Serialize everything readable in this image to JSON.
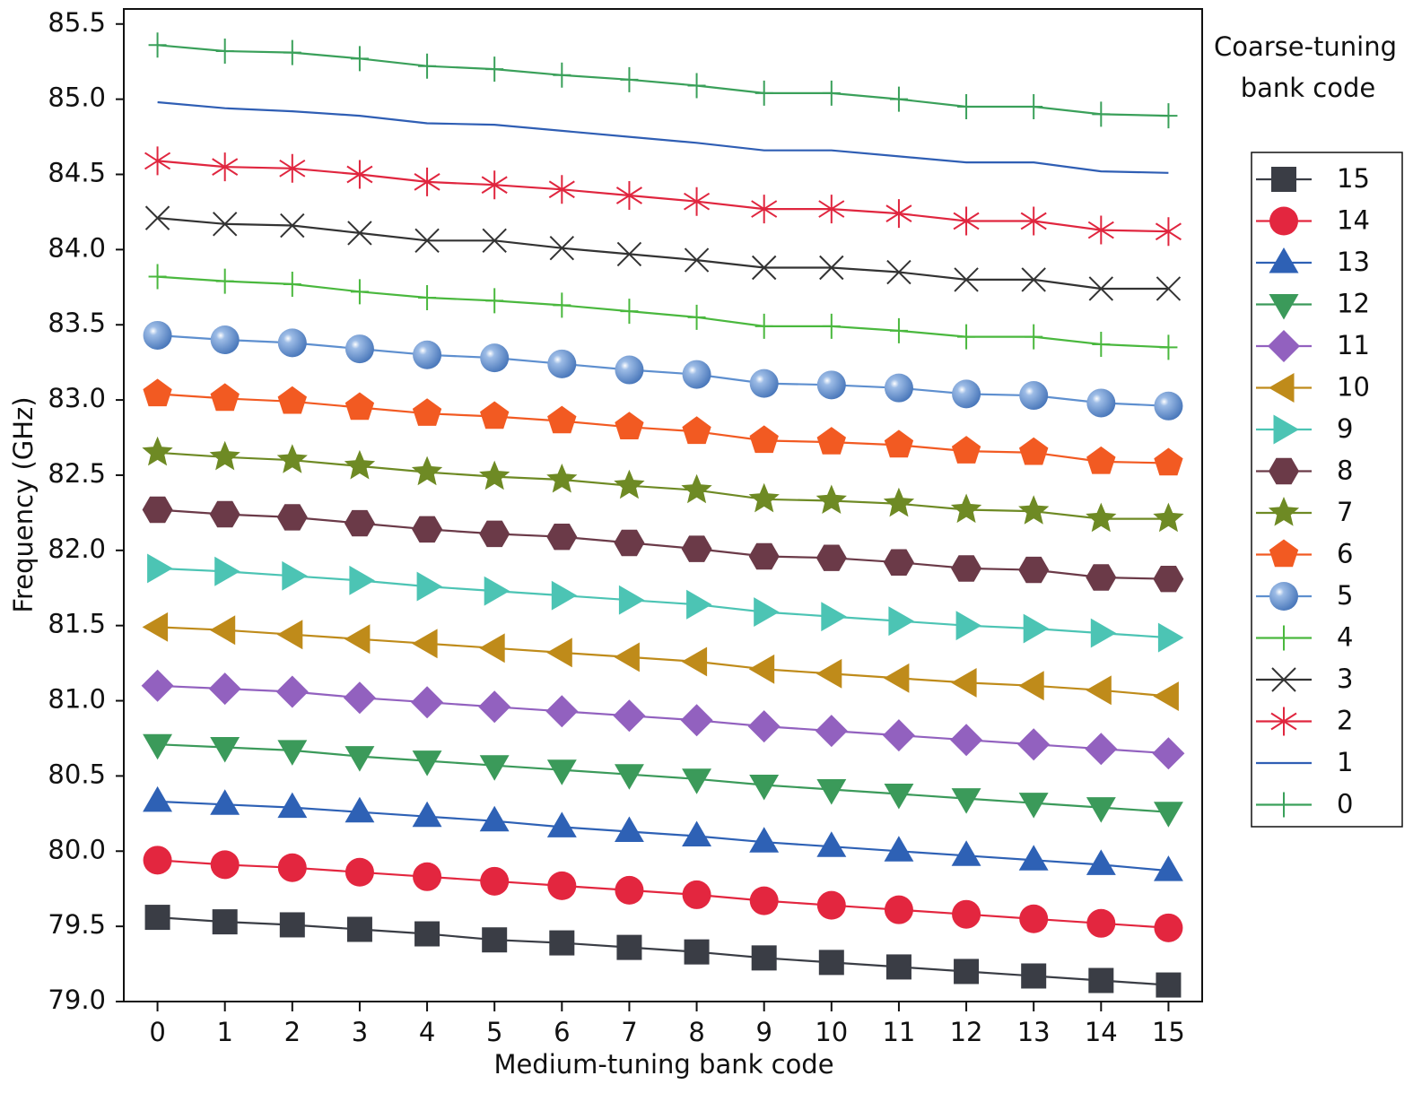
{
  "chart_data": {
    "type": "line",
    "x_label": "Medium-tuning bank code",
    "y_label": "Frequency (GHz)",
    "legend_title": [
      "Coarse-tuning",
      "bank code"
    ],
    "legend": "right",
    "grid": false,
    "x": [
      0,
      1,
      2,
      3,
      4,
      5,
      6,
      7,
      8,
      9,
      10,
      11,
      12,
      13,
      14,
      15
    ],
    "xlim": [
      -0.5,
      15.5
    ],
    "xticks": [
      0,
      1,
      2,
      3,
      4,
      5,
      6,
      7,
      8,
      9,
      10,
      11,
      12,
      13,
      14,
      15
    ],
    "ylim": [
      79.0,
      85.6
    ],
    "yticks": [
      {
        "value": 79.0,
        "label": "79.0"
      },
      {
        "value": 79.5,
        "label": "79.5"
      },
      {
        "value": 80.0,
        "label": "80.0"
      },
      {
        "value": 80.5,
        "label": "80.5"
      },
      {
        "value": 81.0,
        "label": "81.0"
      },
      {
        "value": 81.5,
        "label": "81.5"
      },
      {
        "value": 82.0,
        "label": "82.0"
      },
      {
        "value": 82.5,
        "label": "82.5"
      },
      {
        "value": 83.0,
        "label": "83.0"
      },
      {
        "value": 83.5,
        "label": "83.5"
      },
      {
        "value": 84.0,
        "label": "84.0"
      },
      {
        "value": 84.5,
        "label": "84.5"
      },
      {
        "value": 85.0,
        "label": "85.0"
      },
      {
        "value": 85.5,
        "label": "85.5"
      }
    ],
    "series": [
      {
        "name": "15",
        "color": "#3a3d45",
        "marker": "square",
        "values": [
          79.56,
          79.53,
          79.51,
          79.48,
          79.45,
          79.41,
          79.39,
          79.36,
          79.33,
          79.29,
          79.26,
          79.23,
          79.2,
          79.17,
          79.14,
          79.11
        ]
      },
      {
        "name": "14",
        "color": "#e3263f",
        "marker": "circle",
        "values": [
          79.94,
          79.91,
          79.89,
          79.86,
          79.83,
          79.8,
          79.77,
          79.74,
          79.71,
          79.67,
          79.64,
          79.61,
          79.58,
          79.55,
          79.52,
          79.49
        ]
      },
      {
        "name": "13",
        "color": "#2e61b5",
        "marker": "triangle-up",
        "values": [
          80.33,
          80.31,
          80.29,
          80.26,
          80.23,
          80.2,
          80.16,
          80.13,
          80.1,
          80.06,
          80.03,
          80.0,
          79.97,
          79.94,
          79.91,
          79.87
        ]
      },
      {
        "name": "12",
        "color": "#3b9a5a",
        "marker": "triangle-down",
        "values": [
          80.71,
          80.69,
          80.67,
          80.63,
          80.6,
          80.57,
          80.54,
          80.51,
          80.48,
          80.44,
          80.41,
          80.38,
          80.35,
          80.32,
          80.29,
          80.26
        ]
      },
      {
        "name": "11",
        "color": "#9261bf",
        "marker": "diamond",
        "values": [
          81.1,
          81.08,
          81.06,
          81.02,
          80.99,
          80.96,
          80.93,
          80.9,
          80.87,
          80.83,
          80.8,
          80.77,
          80.74,
          80.71,
          80.68,
          80.65
        ]
      },
      {
        "name": "10",
        "color": "#bf8b1a",
        "marker": "triangle-left",
        "values": [
          81.49,
          81.47,
          81.44,
          81.41,
          81.38,
          81.35,
          81.32,
          81.29,
          81.26,
          81.21,
          81.18,
          81.15,
          81.12,
          81.1,
          81.07,
          81.03
        ]
      },
      {
        "name": "9",
        "color": "#4cc4b4",
        "marker": "triangle-right",
        "values": [
          81.88,
          81.86,
          81.83,
          81.8,
          81.76,
          81.73,
          81.7,
          81.67,
          81.64,
          81.59,
          81.56,
          81.53,
          81.5,
          81.48,
          81.45,
          81.42
        ]
      },
      {
        "name": "8",
        "color": "#6b3a48",
        "marker": "hexagon",
        "values": [
          82.27,
          82.24,
          82.22,
          82.18,
          82.14,
          82.11,
          82.09,
          82.05,
          82.01,
          81.96,
          81.95,
          81.92,
          81.88,
          81.87,
          81.82,
          81.81
        ]
      },
      {
        "name": "7",
        "color": "#6e8a24",
        "marker": "star",
        "values": [
          82.65,
          82.62,
          82.6,
          82.56,
          82.52,
          82.49,
          82.47,
          82.43,
          82.4,
          82.34,
          82.33,
          82.31,
          82.27,
          82.26,
          82.21,
          82.21
        ]
      },
      {
        "name": "6",
        "color": "#f25a22",
        "marker": "pentagon",
        "values": [
          83.04,
          83.01,
          82.99,
          82.95,
          82.91,
          82.89,
          82.86,
          82.82,
          82.79,
          82.73,
          82.72,
          82.7,
          82.66,
          82.65,
          82.59,
          82.58
        ]
      },
      {
        "name": "5",
        "color": "#5e8fcf",
        "marker": "sphere",
        "values": [
          83.43,
          83.4,
          83.38,
          83.34,
          83.3,
          83.28,
          83.24,
          83.2,
          83.17,
          83.11,
          83.1,
          83.08,
          83.04,
          83.03,
          82.98,
          82.96
        ]
      },
      {
        "name": "4",
        "color": "#4ab83e",
        "marker": "plus",
        "values": [
          83.82,
          83.79,
          83.77,
          83.72,
          83.68,
          83.66,
          83.63,
          83.59,
          83.55,
          83.49,
          83.49,
          83.46,
          83.42,
          83.42,
          83.37,
          83.35
        ]
      },
      {
        "name": "3",
        "color": "#333333",
        "marker": "x",
        "values": [
          84.21,
          84.17,
          84.16,
          84.11,
          84.06,
          84.06,
          84.01,
          83.97,
          83.93,
          83.88,
          83.88,
          83.85,
          83.8,
          83.8,
          83.74,
          83.74
        ]
      },
      {
        "name": "2",
        "color": "#e0263f",
        "marker": "asterisk",
        "values": [
          84.59,
          84.55,
          84.54,
          84.5,
          84.45,
          84.43,
          84.4,
          84.36,
          84.32,
          84.27,
          84.27,
          84.24,
          84.19,
          84.19,
          84.13,
          84.12
        ]
      },
      {
        "name": "1",
        "color": "#2f5eb4",
        "marker": "none",
        "values": [
          84.98,
          84.94,
          84.92,
          84.89,
          84.84,
          84.83,
          84.79,
          84.75,
          84.71,
          84.66,
          84.66,
          84.62,
          84.58,
          84.58,
          84.52,
          84.51
        ]
      },
      {
        "name": "0",
        "color": "#3aa05a",
        "marker": "plus",
        "values": [
          85.36,
          85.32,
          85.31,
          85.27,
          85.22,
          85.2,
          85.16,
          85.13,
          85.09,
          85.04,
          85.04,
          85.0,
          84.95,
          84.95,
          84.9,
          84.89
        ]
      }
    ]
  }
}
